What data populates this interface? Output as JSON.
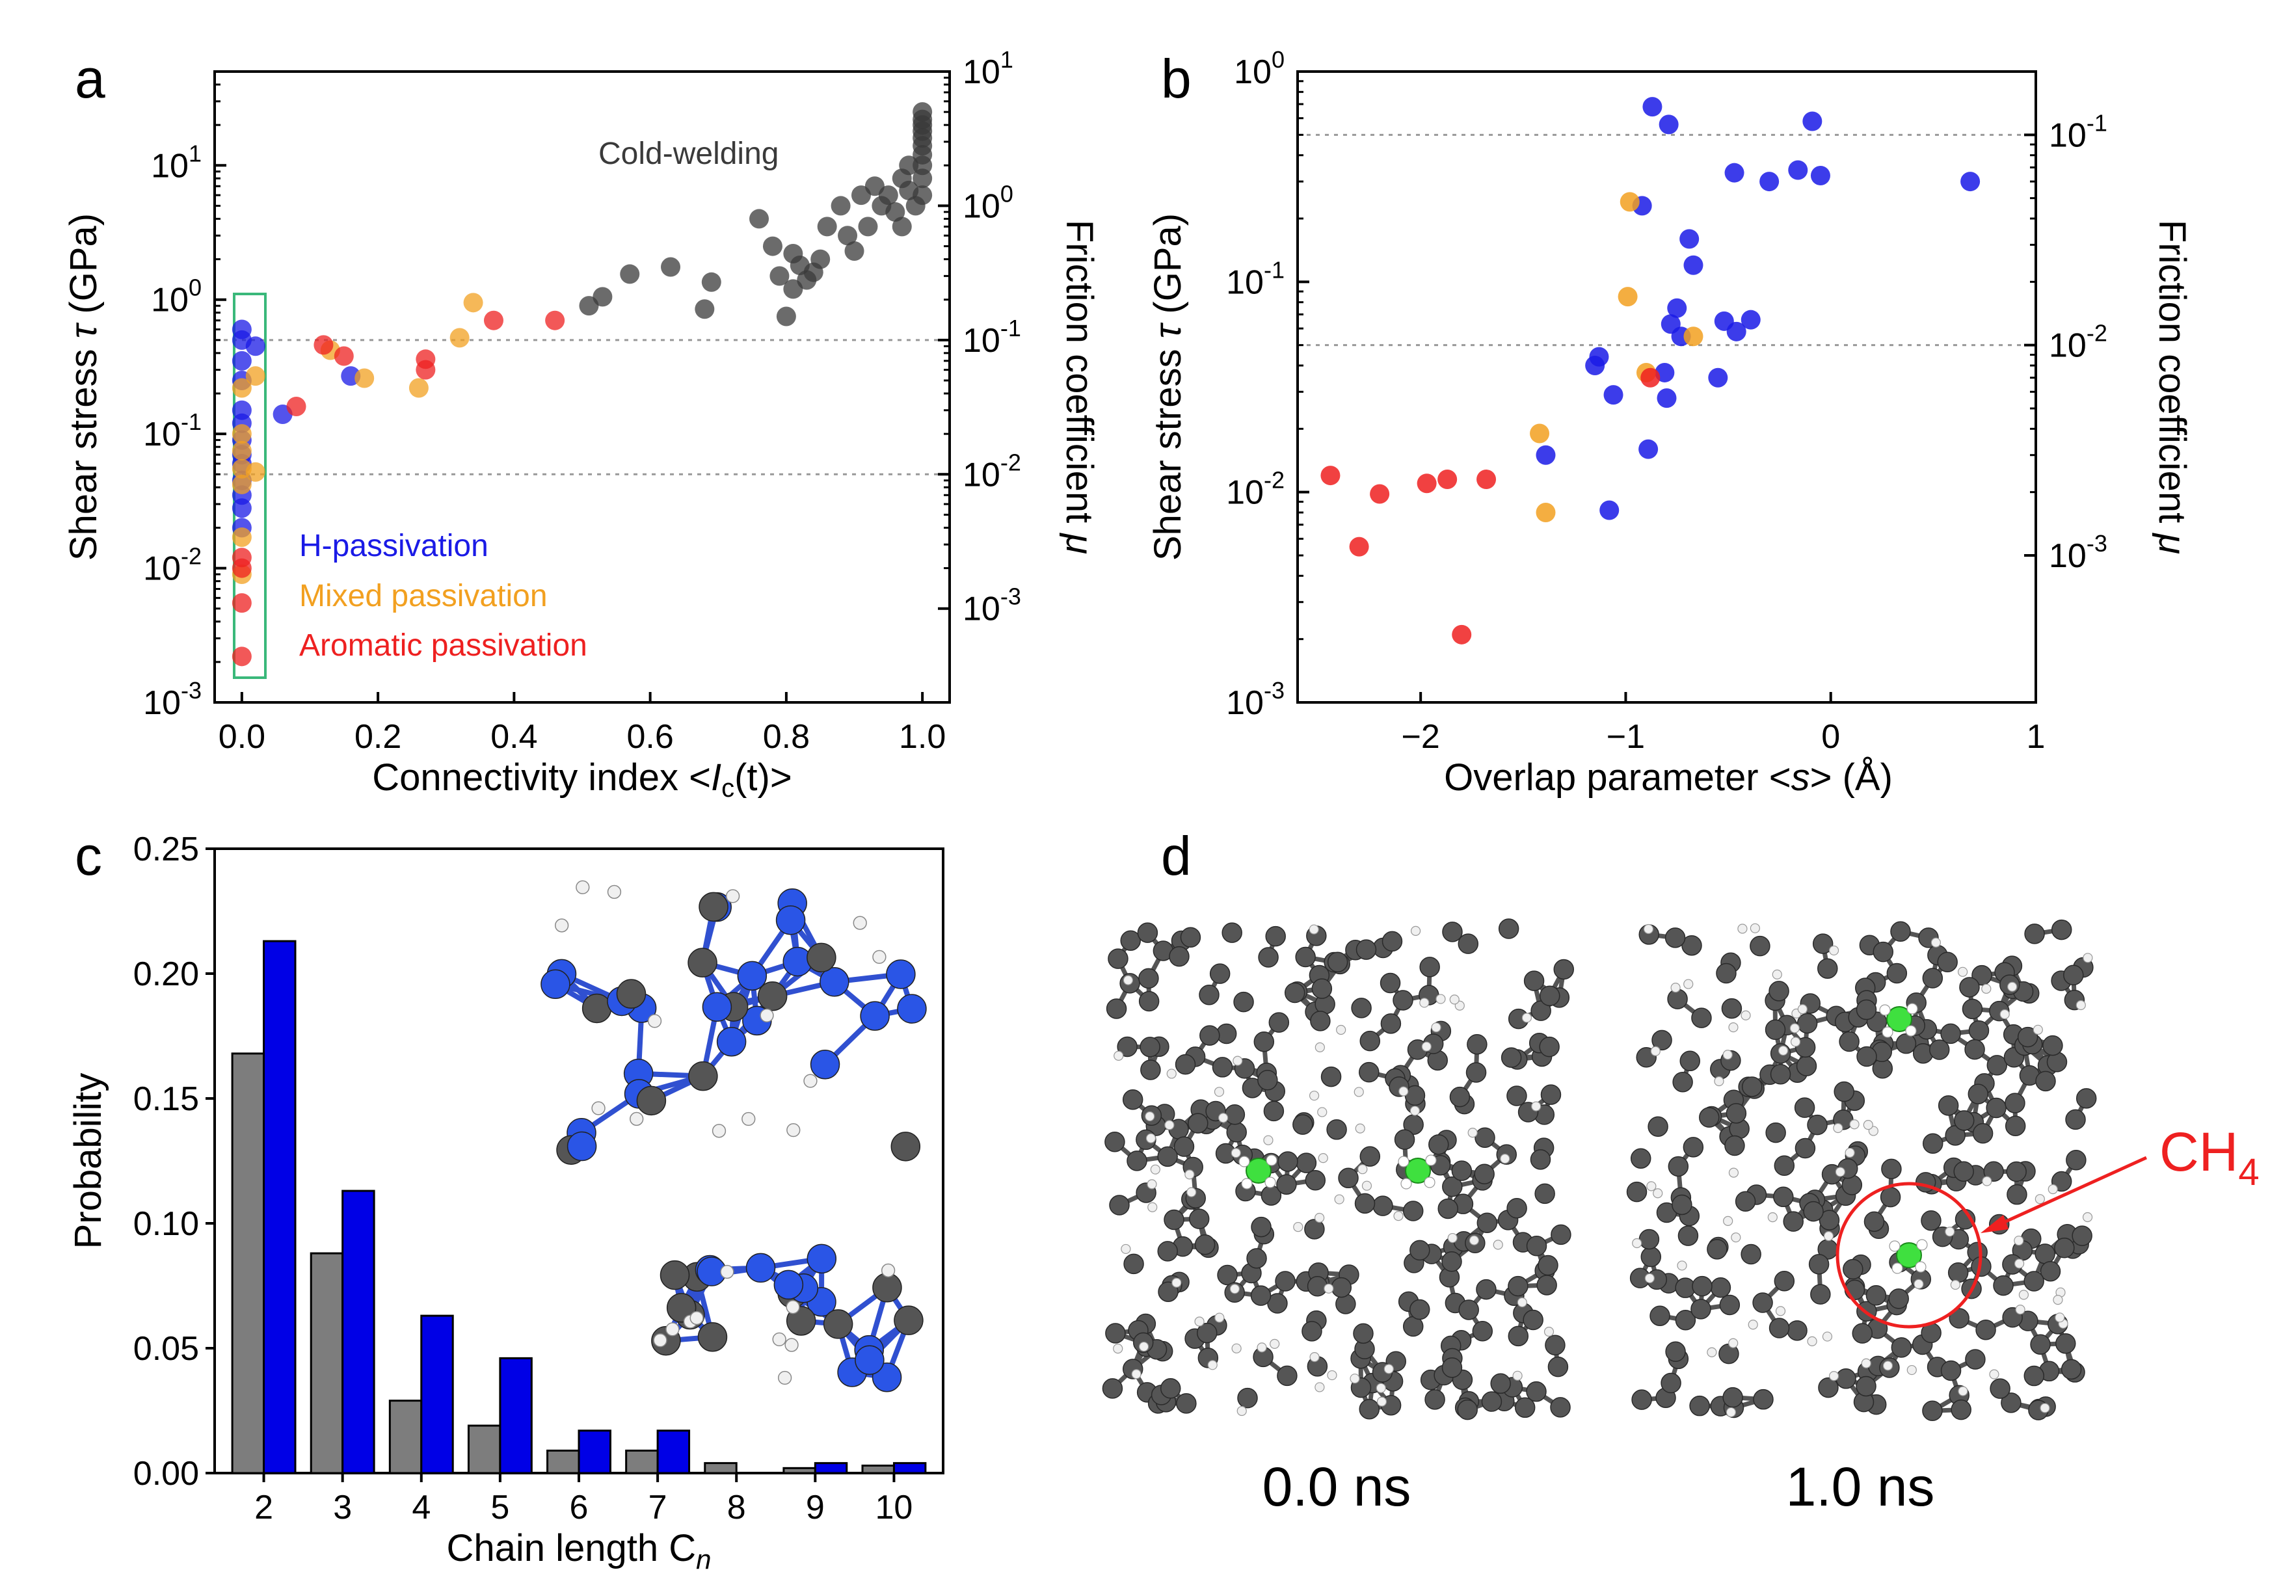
{
  "chart_data": [
    {
      "panel": "a",
      "type": "scatter",
      "xlabel": "Connectivity index <I_c(t)>",
      "ylabel": "Shear stress τ (GPa)",
      "y2label": "Friction coefficient μ",
      "xlim": [
        -0.04,
        1.04
      ],
      "ylim": [
        0.001,
        50
      ],
      "yscale": "log",
      "y2lim": [
        0.0002,
        10
      ],
      "xticks": [
        "0.0",
        "0.2",
        "0.4",
        "0.6",
        "0.8",
        "1.0"
      ],
      "annotation": "Cold-welding",
      "legend": [
        "H-passivation",
        "Mixed passivation",
        "Aromatic passivation"
      ],
      "series": [
        {
          "name": "Cold-welding",
          "color": "#3a3a3a",
          "points": [
            [
              0.51,
              0.9
            ],
            [
              0.53,
              1.05
            ],
            [
              0.57,
              1.55
            ],
            [
              0.63,
              1.75
            ],
            [
              0.68,
              0.85
            ],
            [
              0.69,
              1.35
            ],
            [
              0.76,
              4.0
            ],
            [
              0.78,
              2.5
            ],
            [
              0.79,
              1.5
            ],
            [
              0.8,
              0.75
            ],
            [
              0.81,
              1.2
            ],
            [
              0.81,
              2.2
            ],
            [
              0.82,
              1.8
            ],
            [
              0.83,
              1.4
            ],
            [
              0.84,
              1.6
            ],
            [
              0.85,
              2.0
            ],
            [
              0.86,
              3.5
            ],
            [
              0.88,
              5.0
            ],
            [
              0.89,
              3.0
            ],
            [
              0.9,
              2.3
            ],
            [
              0.91,
              6.0
            ],
            [
              0.92,
              3.5
            ],
            [
              0.93,
              7.0
            ],
            [
              0.94,
              5.0
            ],
            [
              0.95,
              6.0
            ],
            [
              0.96,
              4.5
            ],
            [
              0.97,
              8.0
            ],
            [
              0.97,
              3.5
            ],
            [
              0.98,
              10.0
            ],
            [
              0.98,
              6.5
            ],
            [
              0.99,
              5.0
            ],
            [
              1.0,
              10.0
            ],
            [
              1.0,
              12.0
            ],
            [
              1.0,
              14.0
            ],
            [
              1.0,
              16.0
            ],
            [
              1.0,
              18.0
            ],
            [
              1.0,
              20.0
            ],
            [
              1.0,
              22.0
            ],
            [
              1.0,
              25.0
            ],
            [
              1.0,
              8.0
            ],
            [
              1.0,
              6.0
            ]
          ]
        },
        {
          "name": "H-passivation",
          "color": "#1a1ae6",
          "points": [
            [
              0.0,
              0.6
            ],
            [
              0.0,
              0.5
            ],
            [
              0.0,
              0.35
            ],
            [
              0.0,
              0.25
            ],
            [
              0.0,
              0.15
            ],
            [
              0.0,
              0.12
            ],
            [
              0.0,
              0.09
            ],
            [
              0.0,
              0.07
            ],
            [
              0.0,
              0.06
            ],
            [
              0.0,
              0.045
            ],
            [
              0.0,
              0.035
            ],
            [
              0.0,
              0.028
            ],
            [
              0.0,
              0.02
            ],
            [
              0.02,
              0.45
            ],
            [
              0.06,
              0.14
            ],
            [
              0.16,
              0.27
            ]
          ]
        },
        {
          "name": "Mixed passivation",
          "color": "#f2a020",
          "points": [
            [
              0.0,
              0.22
            ],
            [
              0.0,
              0.1
            ],
            [
              0.0,
              0.075
            ],
            [
              0.0,
              0.055
            ],
            [
              0.0,
              0.042
            ],
            [
              0.0,
              0.017
            ],
            [
              0.0,
              0.009
            ],
            [
              0.02,
              0.27
            ],
            [
              0.02,
              0.052
            ],
            [
              0.13,
              0.42
            ],
            [
              0.18,
              0.26
            ],
            [
              0.26,
              0.22
            ],
            [
              0.32,
              0.52
            ],
            [
              0.34,
              0.95
            ]
          ]
        },
        {
          "name": "Aromatic passivation",
          "color": "#ee2020",
          "points": [
            [
              0.0,
              0.012
            ],
            [
              0.0,
              0.01
            ],
            [
              0.0,
              0.0055
            ],
            [
              0.0,
              0.0022
            ],
            [
              0.08,
              0.16
            ],
            [
              0.12,
              0.46
            ],
            [
              0.15,
              0.38
            ],
            [
              0.27,
              0.3
            ],
            [
              0.27,
              0.36
            ],
            [
              0.37,
              0.7
            ],
            [
              0.46,
              0.7
            ]
          ]
        }
      ]
    },
    {
      "panel": "b",
      "type": "scatter",
      "xlabel": "Overlap parameter <s> (Å)",
      "ylabel": "Shear stress τ (GPa)",
      "y2label": "Friction coefficient μ",
      "xlim": [
        -2.6,
        1.0
      ],
      "ylim": [
        0.001,
        1.0
      ],
      "yscale": "log",
      "y2lim": [
        0.0002,
        0.2
      ],
      "xticks": [
        "-2",
        "-1",
        "0",
        "1"
      ],
      "series": [
        {
          "name": "H-passivation",
          "color": "#1a1ae6",
          "points": [
            [
              -0.87,
              0.68
            ],
            [
              -0.79,
              0.56
            ],
            [
              -0.09,
              0.58
            ],
            [
              -0.92,
              0.23
            ],
            [
              -0.47,
              0.33
            ],
            [
              -0.3,
              0.3
            ],
            [
              -0.16,
              0.34
            ],
            [
              -0.05,
              0.32
            ],
            [
              0.68,
              0.3
            ],
            [
              -0.69,
              0.16
            ],
            [
              -0.67,
              0.12
            ],
            [
              -0.75,
              0.075
            ],
            [
              -0.78,
              0.063
            ],
            [
              -0.52,
              0.065
            ],
            [
              -0.46,
              0.058
            ],
            [
              -0.39,
              0.066
            ],
            [
              -0.73,
              0.055
            ],
            [
              -1.15,
              0.04
            ],
            [
              -1.13,
              0.044
            ],
            [
              -0.81,
              0.037
            ],
            [
              -0.55,
              0.035
            ],
            [
              -1.06,
              0.029
            ],
            [
              -0.8,
              0.028
            ],
            [
              -1.39,
              0.015
            ],
            [
              -0.89,
              0.016
            ],
            [
              -1.08,
              0.0082
            ]
          ]
        },
        {
          "name": "Mixed passivation",
          "color": "#f2a020",
          "points": [
            [
              -0.98,
              0.24
            ],
            [
              -0.99,
              0.085
            ],
            [
              -0.9,
              0.037
            ],
            [
              -0.67,
              0.055
            ],
            [
              -1.42,
              0.019
            ],
            [
              -1.39,
              0.008
            ]
          ]
        },
        {
          "name": "Aromatic passivation",
          "color": "#ee2020",
          "points": [
            [
              -0.88,
              0.035
            ],
            [
              -2.44,
              0.012
            ],
            [
              -2.2,
              0.0098
            ],
            [
              -1.97,
              0.011
            ],
            [
              -1.87,
              0.0115
            ],
            [
              -1.68,
              0.0115
            ],
            [
              -2.3,
              0.0055
            ],
            [
              -1.8,
              0.0021
            ]
          ]
        }
      ]
    },
    {
      "panel": "c",
      "type": "bar",
      "xlabel": "Chain length C_n",
      "ylabel": "Probability",
      "ylim": [
        0,
        0.25
      ],
      "yticks": [
        "0.00",
        "0.05",
        "0.10",
        "0.15",
        "0.20",
        "0.25"
      ],
      "categories": [
        "2",
        "3",
        "4",
        "5",
        "6",
        "7",
        "8",
        "9",
        "10"
      ],
      "series": [
        {
          "name": "gray",
          "color": "#7d7d7d",
          "values": [
            0.168,
            0.088,
            0.029,
            0.019,
            0.009,
            0.009,
            0.004,
            0.002,
            0.003
          ]
        },
        {
          "name": "blue",
          "color": "#0000e6",
          "values": [
            0.213,
            0.113,
            0.063,
            0.046,
            0.017,
            0.017,
            0.0,
            0.004,
            0.004
          ]
        }
      ]
    }
  ],
  "labels": {
    "panel_a": "a",
    "panel_b": "b",
    "panel_c": "c",
    "panel_d": "d",
    "cold_welding": "Cold-welding",
    "h_pass": "H-passivation",
    "mixed_pass": "Mixed passivation",
    "aromatic_pass": "Aromatic passivation",
    "shear_stress_prefix": "Shear stress ",
    "tau": "τ",
    "gpa": " (GPa)",
    "friction_prefix": "Friction coefficient ",
    "mu": "μ",
    "conn_prefix": "Connectivity index <",
    "conn_I": "I",
    "conn_c": "c",
    "conn_t": "(t)",
    "conn_suffix": ">",
    "overlap_prefix": "Overlap parameter <",
    "overlap_s": "s",
    "overlap_suffix": "> (Å)",
    "probability": "Probability",
    "chain_prefix": "Chain length C",
    "chain_n": "n",
    "time_0": "0.0 ns",
    "time_1": "1.0 ns",
    "ch4_main": "CH",
    "ch4_sub": "4"
  },
  "colors": {
    "gray_atom": "#555555",
    "white_atom": "#f0f0f0",
    "green_atom": "#3fe03f",
    "blue_atom": "#2a55e6",
    "box_green": "#3ab87a",
    "annotation_red": "#ee2020"
  }
}
